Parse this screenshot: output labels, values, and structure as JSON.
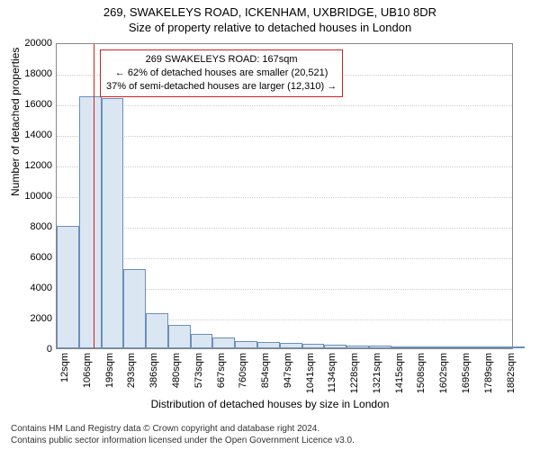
{
  "titles": {
    "main": "269, SWAKELEYS ROAD, ICKENHAM, UXBRIDGE, UB10 8DR",
    "sub": "Size of property relative to detached houses in London"
  },
  "axes": {
    "xlabel": "Distribution of detached houses by size in London",
    "ylabel": "Number of detached properties",
    "label_fontsize": 12,
    "ymin": 0,
    "ymax": 20000,
    "ytick_step": 2000,
    "yticks": [
      0,
      2000,
      4000,
      6000,
      8000,
      10000,
      12000,
      14000,
      16000,
      18000,
      20000
    ],
    "xticks": [
      "12sqm",
      "106sqm",
      "199sqm",
      "293sqm",
      "386sqm",
      "480sqm",
      "573sqm",
      "667sqm",
      "760sqm",
      "854sqm",
      "947sqm",
      "1041sqm",
      "1134sqm",
      "1228sqm",
      "1321sqm",
      "1415sqm",
      "1508sqm",
      "1602sqm",
      "1695sqm",
      "1789sqm",
      "1882sqm"
    ],
    "tick_fontsize": 11
  },
  "histogram": {
    "type": "histogram",
    "bin_width_sqm": 93.5,
    "xmin": 12,
    "xmax": 1929,
    "values": [
      8000,
      16500,
      16350,
      5200,
      2300,
      1550,
      950,
      700,
      500,
      400,
      350,
      300,
      250,
      200,
      170,
      140,
      120,
      100,
      90,
      80,
      70
    ],
    "bar_fill": "#dbe6f3",
    "bar_border": "#6b8fb8",
    "background": "#ffffff",
    "grid_color": "#cccccc"
  },
  "marker": {
    "value_sqm": 167,
    "line_color": "#d02020"
  },
  "annotation": {
    "border_color": "#d02020",
    "background": "#ffffff",
    "fontsize": 11,
    "line1": "269 SWAKELEYS ROAD: 167sqm",
    "line2": "← 62% of detached houses are smaller (20,521)",
    "line3": "37% of semi-detached houses are larger (12,310) →"
  },
  "footer": {
    "line1": "Contains HM Land Registry data © Crown copyright and database right 2024.",
    "line2": "Contains public sector information licensed under the Open Government Licence v3.0.",
    "fontsize": 10,
    "color": "#333333"
  }
}
